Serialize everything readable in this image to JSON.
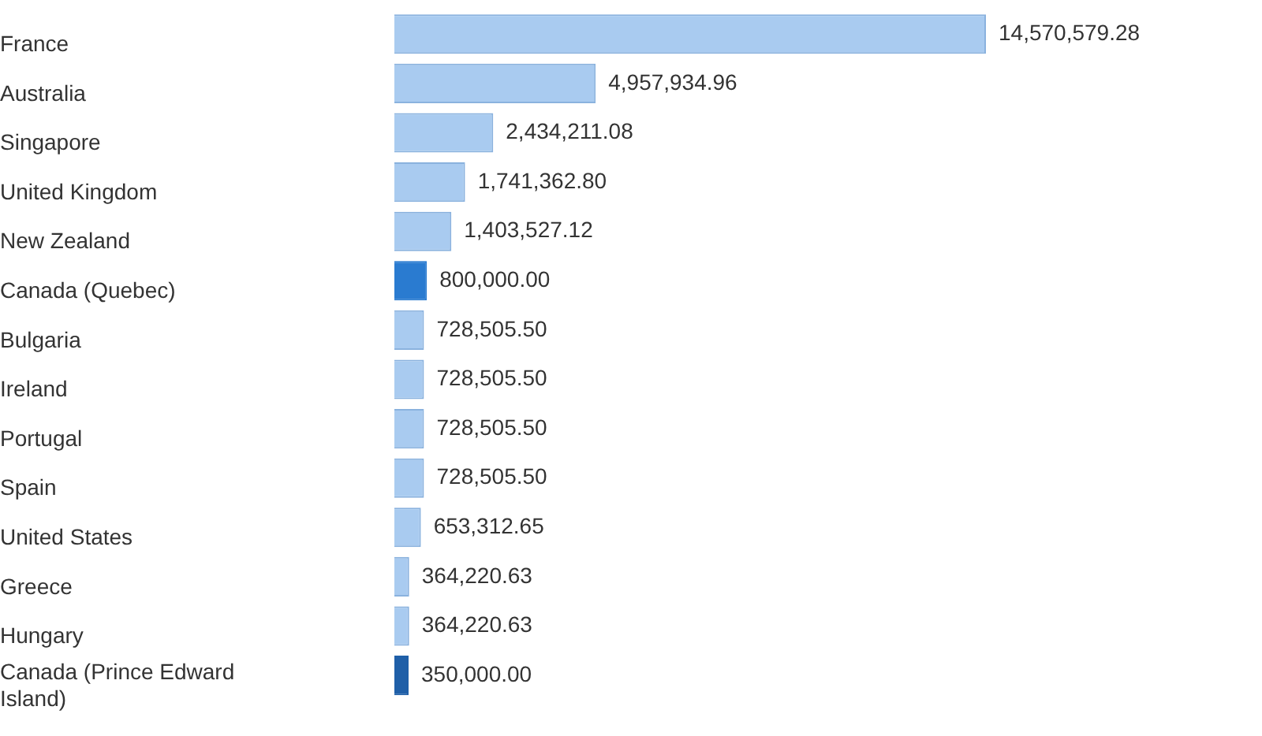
{
  "chart_data": {
    "type": "bar",
    "orientation": "horizontal",
    "tick_labels": "y",
    "legend": false,
    "categories": [
      "France",
      "Australia",
      "Singapore",
      "United Kingdom",
      "New Zealand",
      "Canada (Quebec)",
      "Bulgaria",
      "Ireland",
      "Portugal",
      "Spain",
      "United States",
      "Greece",
      "Hungary",
      "Canada (Prince Edward Island)"
    ],
    "values": [
      14570579.28,
      4957934.96,
      2434211.08,
      1741362.8,
      1403527.12,
      800000.0,
      728505.5,
      728505.5,
      728505.5,
      728505.5,
      653312.65,
      364220.63,
      364220.63,
      350000.0
    ],
    "colors": [
      "#a9cbf0",
      "#a9cbf0",
      "#a9cbf0",
      "#a9cbf0",
      "#a9cbf0",
      "#2a7bd0",
      "#a9cbf0",
      "#a9cbf0",
      "#a9cbf0",
      "#a9cbf0",
      "#a9cbf0",
      "#a9cbf0",
      "#a9cbf0",
      "#1f5fa8"
    ],
    "value_labels": [
      "14,570,579.28",
      "4,957,934.96",
      "2,434,211.08",
      "1,741,362.80",
      "1,403,527.12",
      "800,000.00",
      "728,505.50",
      "728,505.50",
      "728,505.50",
      "728,505.50",
      "653,312.65",
      "364,220.63",
      "364,220.63",
      "350,000.00"
    ]
  }
}
